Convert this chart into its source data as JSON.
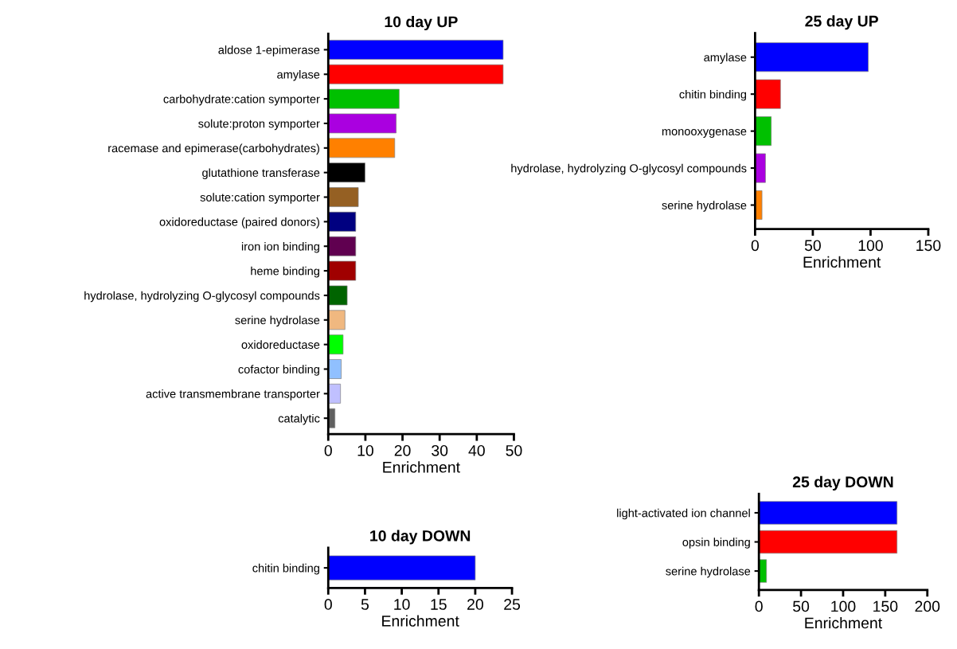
{
  "chart_data": [
    {
      "type": "bar",
      "orientation": "horizontal",
      "title": "10 day UP",
      "xlabel": "Enrichment",
      "categories": [
        "aldose 1-epimerase",
        "amylase",
        "carbohydrate:cation symporter",
        "solute:proton symporter",
        "racemase and epimerase(carbohydrates)",
        "glutathione transferase",
        "solute:cation symporter",
        "oxidoreductase (paired donors)",
        "iron ion binding",
        "heme binding",
        "hydrolase, hydrolyzing O-glycosyl compounds",
        "serine hydrolase",
        "oxidoreductase",
        "cofactor binding",
        "active transmembrane transporter",
        "catalytic"
      ],
      "values": [
        47.1,
        47.1,
        19.1,
        18.3,
        17.9,
        9.9,
        8.1,
        7.4,
        7.4,
        7.4,
        5.1,
        4.5,
        4.0,
        3.5,
        3.3,
        1.8
      ],
      "colors": [
        "#0000ff",
        "#ff0000",
        "#00c000",
        "#aa00e0",
        "#ff8000",
        "#000000",
        "#956023",
        "#000080",
        "#600050",
        "#a00000",
        "#006400",
        "#f0b880",
        "#00ff00",
        "#90c0ff",
        "#c0c0ff",
        "#606060"
      ],
      "xlim": [
        0,
        50
      ],
      "xticks": [
        0,
        10,
        20,
        30,
        40,
        50
      ]
    },
    {
      "type": "bar",
      "orientation": "horizontal",
      "title": "25 day UP",
      "xlabel": "Enrichment",
      "categories": [
        "amylase",
        "chitin binding",
        "monooxygenase",
        "hydrolase, hydrolyzing O-glycosyl compounds",
        "serine hydrolase"
      ],
      "values": [
        98,
        22,
        14,
        9,
        6
      ],
      "colors": [
        "#0000ff",
        "#ff0000",
        "#00c000",
        "#aa00e0",
        "#ff8000"
      ],
      "xlim": [
        0,
        150
      ],
      "xticks": [
        0,
        50,
        100,
        150
      ]
    },
    {
      "type": "bar",
      "orientation": "horizontal",
      "title": "10 day DOWN",
      "xlabel": "Enrichment",
      "categories": [
        "chitin binding"
      ],
      "values": [
        20
      ],
      "colors": [
        "#0000ff"
      ],
      "xlim": [
        0,
        25
      ],
      "xticks": [
        0,
        5,
        10,
        15,
        20,
        25
      ]
    },
    {
      "type": "bar",
      "orientation": "horizontal",
      "title": "25 day DOWN",
      "xlabel": "Enrichment",
      "categories": [
        "light-activated ion channel",
        "opsin binding",
        "serine hydrolase"
      ],
      "values": [
        164,
        164,
        9
      ],
      "colors": [
        "#0000ff",
        "#ff0000",
        "#00c000"
      ],
      "xlim": [
        0,
        200
      ],
      "xticks": [
        0,
        50,
        100,
        150,
        200
      ]
    }
  ]
}
